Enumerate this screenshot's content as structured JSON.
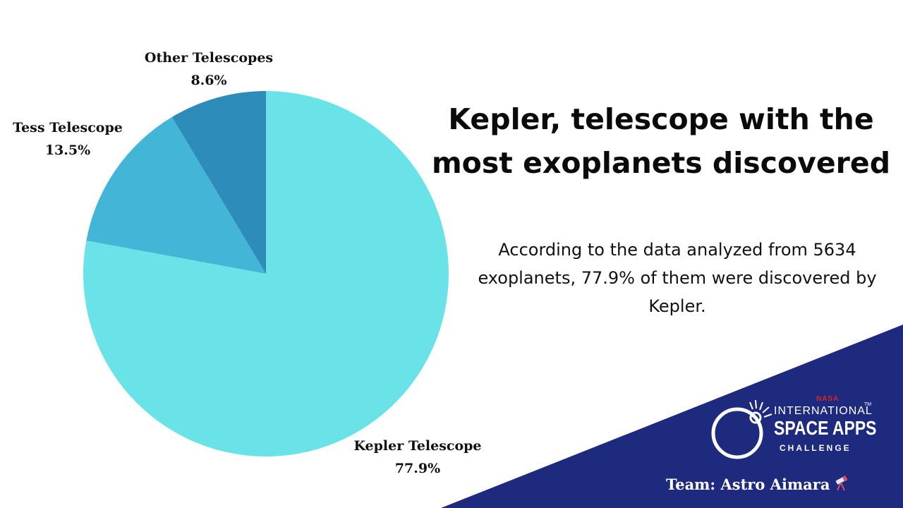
{
  "chart_data": {
    "type": "pie",
    "categories": [
      "Kepler Telescope",
      "Tess Telescope",
      "Other Telescopes"
    ],
    "values": [
      77.9,
      13.5,
      8.6
    ],
    "value_labels": [
      "77.9%",
      "13.5%",
      "8.6%"
    ],
    "colors": [
      "#6AE3E8",
      "#43B5D6",
      "#2E8CBA"
    ],
    "start": "12 o'clock",
    "direction": "clockwise",
    "legend": "none",
    "data_labels": "outside"
  },
  "headline": "Kepler, telescope with the most exoplanets discovered",
  "description": "According to the data analyzed from 5634 exoplanets, 77.9% of them were discovered by Kepler.",
  "logo": {
    "nasa": "NASA",
    "line1": "INTERNATIONAL",
    "line2": "SPACE APPS",
    "line3": "CHALLENGE",
    "tm": "TM"
  },
  "team": "Team: Astro Aimara",
  "team_icon": "telescope-icon",
  "corner_color": "#1E2A7E"
}
